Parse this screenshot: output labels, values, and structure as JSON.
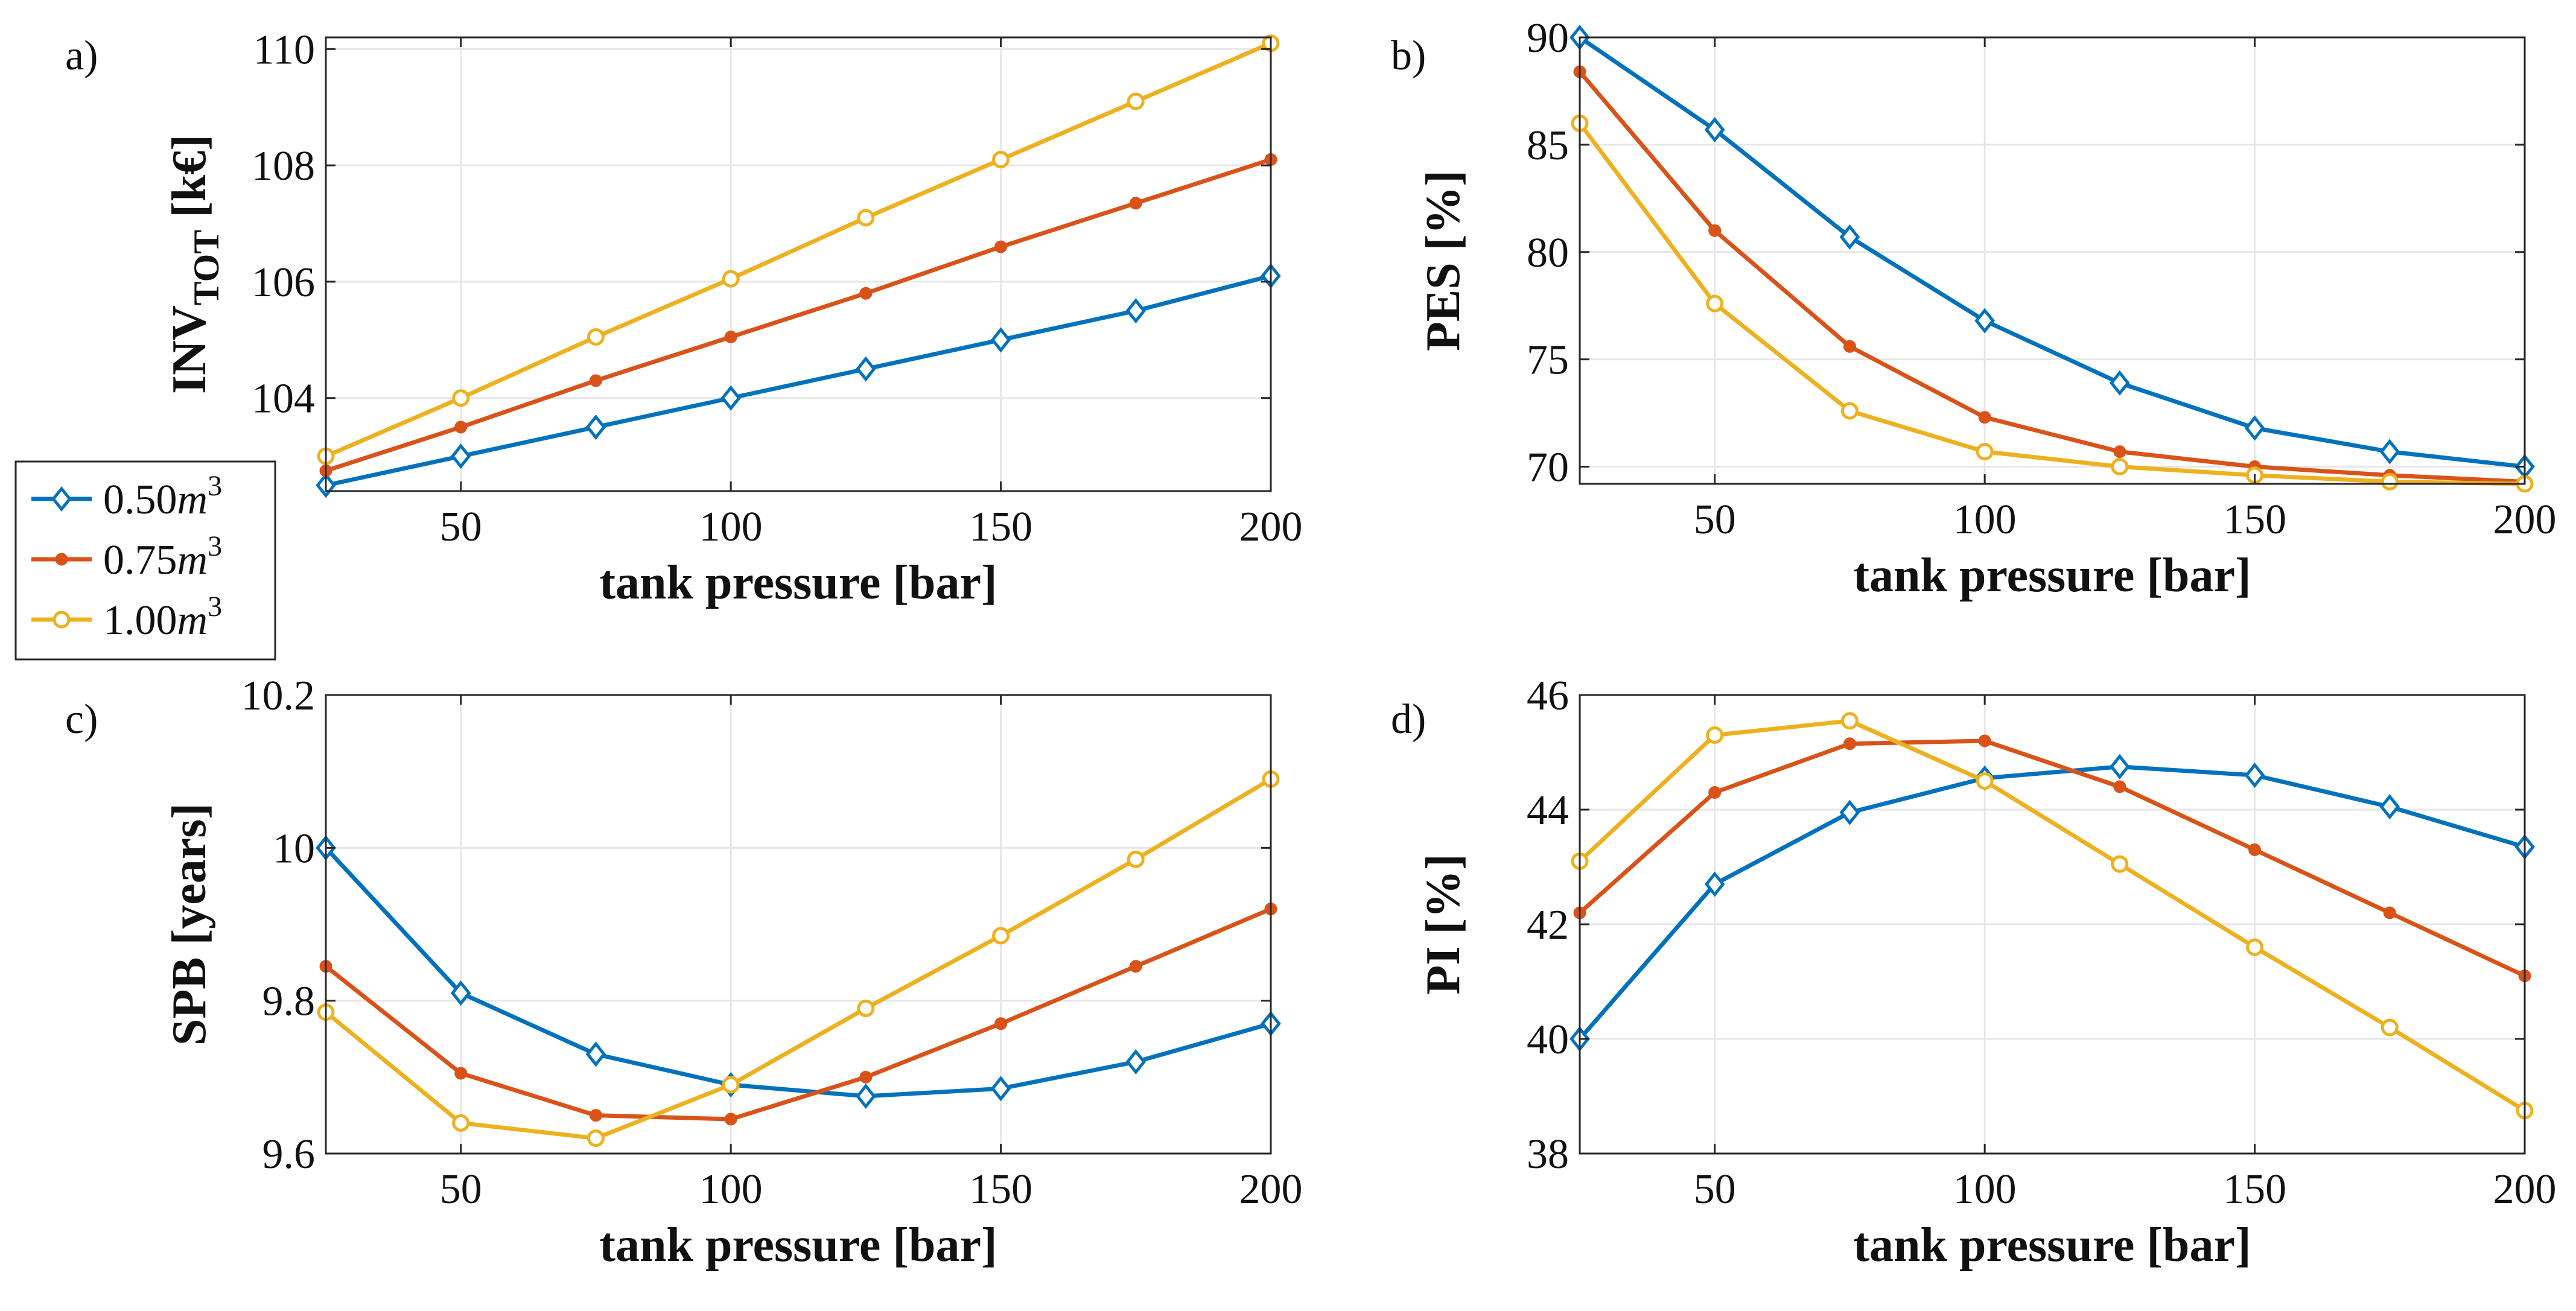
{
  "figure": {
    "colors": {
      "s1": "#0072BD",
      "s2": "#D95319",
      "s3": "#EDB120",
      "grid": "#e6e6e6",
      "axis": "#262626"
    }
  },
  "legend": {
    "entries": [
      {
        "text": "0.50",
        "unit": "m",
        "exp": "3",
        "series": "s1",
        "marker": "diamond"
      },
      {
        "text": "0.75",
        "unit": "m",
        "exp": "3",
        "series": "s2",
        "marker": "dot"
      },
      {
        "text": "1.00",
        "unit": "m",
        "exp": "3",
        "series": "s3",
        "marker": "circle"
      }
    ]
  },
  "chart_data": [
    {
      "type": "line",
      "panel_label": "a)",
      "xlabel": "tank pressure [bar]",
      "ylabel_main": "INV",
      "ylabel_sub": "TOT",
      "ylabel_unit": " [k€]",
      "xlim": [
        25,
        200
      ],
      "ylim": [
        102.4,
        110.2
      ],
      "xticks": [
        50,
        100,
        150,
        200
      ],
      "yticks": [
        104,
        106,
        108,
        110
      ],
      "x": [
        25,
        50,
        75,
        100,
        125,
        150,
        175,
        200
      ],
      "series": [
        {
          "key": "s1",
          "values": [
            102.5,
            103.0,
            103.5,
            104.0,
            104.5,
            105.0,
            105.5,
            106.1
          ]
        },
        {
          "key": "s2",
          "values": [
            102.75,
            103.5,
            104.3,
            105.05,
            105.8,
            106.6,
            107.35,
            108.1
          ]
        },
        {
          "key": "s3",
          "values": [
            103.0,
            104.0,
            105.05,
            106.05,
            107.1,
            108.1,
            109.1,
            110.1
          ]
        }
      ]
    },
    {
      "type": "line",
      "panel_label": "b)",
      "xlabel": "tank pressure [bar]",
      "ylabel_main": "PES [%]",
      "xlim": [
        25,
        200
      ],
      "ylim": [
        69.2,
        90
      ],
      "xticks": [
        50,
        100,
        150,
        200
      ],
      "yticks": [
        70,
        75,
        80,
        85,
        90
      ],
      "x": [
        25,
        50,
        75,
        100,
        125,
        150,
        175,
        200
      ],
      "series": [
        {
          "key": "s1",
          "values": [
            90.0,
            85.7,
            80.7,
            76.8,
            73.9,
            71.8,
            70.7,
            70.0
          ]
        },
        {
          "key": "s2",
          "values": [
            88.4,
            81.0,
            75.6,
            72.3,
            70.7,
            70.0,
            69.6,
            69.3
          ]
        },
        {
          "key": "s3",
          "values": [
            86.0,
            77.6,
            72.6,
            70.7,
            70.0,
            69.6,
            69.3,
            69.2
          ]
        }
      ]
    },
    {
      "type": "line",
      "panel_label": "c)",
      "xlabel": "tank pressure [bar]",
      "ylabel_main": "SPB [years]",
      "xlim": [
        25,
        200
      ],
      "ylim": [
        9.6,
        10.2
      ],
      "xticks": [
        50,
        100,
        150,
        200
      ],
      "yticks": [
        9.6,
        9.8,
        10,
        10.2
      ],
      "ytick_labels": [
        "9.6",
        "9.8",
        "10",
        "10.2"
      ],
      "x": [
        25,
        50,
        75,
        100,
        125,
        150,
        175,
        200
      ],
      "series": [
        {
          "key": "s1",
          "values": [
            10.0,
            9.81,
            9.73,
            9.69,
            9.675,
            9.685,
            9.72,
            9.77
          ]
        },
        {
          "key": "s2",
          "values": [
            9.845,
            9.705,
            9.65,
            9.645,
            9.7,
            9.77,
            9.845,
            9.92
          ]
        },
        {
          "key": "s3",
          "values": [
            9.785,
            9.64,
            9.62,
            9.69,
            9.79,
            9.885,
            9.985,
            10.09
          ]
        }
      ]
    },
    {
      "type": "line",
      "panel_label": "d)",
      "xlabel": "tank pressure [bar]",
      "ylabel_main": "PI [%]",
      "xlim": [
        25,
        200
      ],
      "ylim": [
        38,
        46
      ],
      "xticks": [
        50,
        100,
        150,
        200
      ],
      "yticks": [
        38,
        40,
        42,
        44,
        46
      ],
      "x": [
        25,
        50,
        75,
        100,
        125,
        150,
        175,
        200
      ],
      "series": [
        {
          "key": "s1",
          "values": [
            40.0,
            42.7,
            43.95,
            44.55,
            44.75,
            44.6,
            44.05,
            43.35
          ]
        },
        {
          "key": "s2",
          "values": [
            42.2,
            44.3,
            45.15,
            45.2,
            44.4,
            43.3,
            42.2,
            41.1
          ]
        },
        {
          "key": "s3",
          "values": [
            43.1,
            45.3,
            45.55,
            44.5,
            43.05,
            41.6,
            40.2,
            38.75
          ]
        }
      ]
    }
  ]
}
